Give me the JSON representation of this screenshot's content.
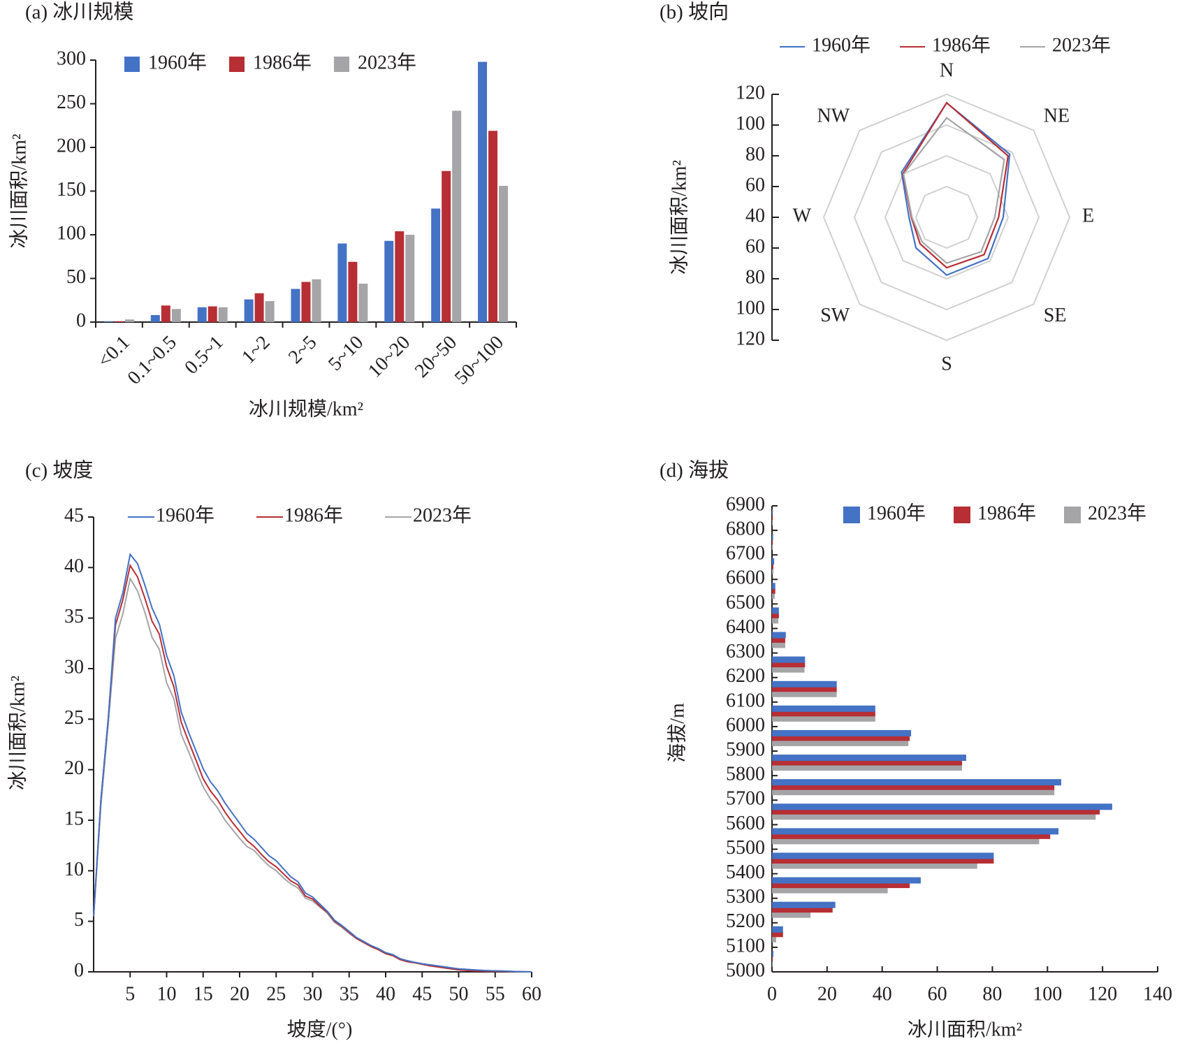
{
  "chart_data": [
    {
      "panel_title": "(a) 冰川规模",
      "type": "bar",
      "orientation": "vertical",
      "categories": [
        "<0.1",
        "0.1~0.5",
        "0.5~1",
        "1~2",
        "2~5",
        "5~10",
        "10~20",
        "20~50",
        "50~100"
      ],
      "series": [
        {
          "name": "1960年",
          "color": "#4472c4",
          "values": [
            1,
            8,
            17,
            26,
            38,
            90,
            93,
            130,
            298
          ]
        },
        {
          "name": "1986年",
          "color": "#b72e34",
          "values": [
            1,
            19,
            18,
            33,
            46,
            69,
            104,
            173,
            219
          ]
        },
        {
          "name": "2023年",
          "color": "#a5a5a8",
          "values": [
            3,
            15,
            17,
            24,
            49,
            44,
            100,
            242,
            156
          ]
        }
      ],
      "xlabel": "冰川规模/km²",
      "ylabel": "冰川面积/km²",
      "ylim": [
        0,
        300
      ],
      "yticks": [
        0,
        50,
        100,
        150,
        200,
        250,
        300
      ],
      "grid": false,
      "legend": "top"
    },
    {
      "panel_title": "(b) 坡向",
      "type": "radar",
      "categories": [
        "N",
        "NE",
        "E",
        "SE",
        "S",
        "SW",
        "W",
        "NW"
      ],
      "series": [
        {
          "name": "1960年",
          "color": "#4472c4",
          "values": [
            114.4,
            98,
            76.8,
            78,
            77.6,
            68.2,
            64.5,
            81.5
          ]
        },
        {
          "name": "1986年",
          "color": "#b72e34",
          "values": [
            114.5,
            96.5,
            73.8,
            74.4,
            72.8,
            64.4,
            63,
            80.2
          ]
        },
        {
          "name": "2023年",
          "color": "#a5a5a8",
          "values": [
            104.7,
            93,
            71.3,
            71.7,
            69.8,
            62.6,
            62.6,
            79.7
          ]
        }
      ],
      "ylabel": "冰川面积/km²",
      "range": [
        40,
        120
      ],
      "rings": [
        60,
        80,
        100,
        120
      ],
      "axis_tick_labels": [
        "120",
        "100",
        "80",
        "60",
        "40",
        "60",
        "80",
        "100",
        "120"
      ],
      "grid": true,
      "legend": "top"
    },
    {
      "panel_title": "(c) 坡度",
      "type": "line",
      "x": [
        0,
        1,
        2,
        3,
        4,
        5,
        6,
        7,
        8,
        9,
        10,
        11,
        12,
        13,
        14,
        15,
        16,
        17,
        18,
        19,
        20,
        21,
        22,
        23,
        24,
        25,
        26,
        27,
        28,
        29,
        30,
        31,
        32,
        33,
        34,
        35,
        36,
        37,
        38,
        39,
        40,
        41,
        42,
        43,
        44,
        45,
        46,
        47,
        48,
        49,
        50,
        51,
        52,
        53,
        54,
        55,
        56,
        57,
        58,
        59,
        60
      ],
      "series": [
        {
          "name": "1960年",
          "color": "#4472c4",
          "values": [
            5.5,
            17,
            25,
            35,
            37.5,
            41.3,
            40.4,
            38.3,
            36,
            34.4,
            31.3,
            29.3,
            25.7,
            23.7,
            21.9,
            20.1,
            18.8,
            17.9,
            16.7,
            15.7,
            14.7,
            13.7,
            13.1,
            12.3,
            11.5,
            11,
            10.2,
            9.4,
            8.9,
            7.8,
            7.4,
            6.7,
            6,
            5.1,
            4.6,
            4,
            3.4,
            3,
            2.6,
            2.3,
            1.9,
            1.7,
            1.3,
            1.1,
            0.95,
            0.8,
            0.7,
            0.6,
            0.5,
            0.4,
            0.3,
            0.25,
            0.2,
            0.15,
            0.12,
            0.1,
            0.08,
            0.05,
            0.03,
            0.01,
            0
          ]
        },
        {
          "name": "1986年",
          "color": "#b72e34",
          "values": [
            5.5,
            17,
            25,
            34.3,
            36.8,
            40.2,
            39.1,
            37,
            34.7,
            33.4,
            30.2,
            28.2,
            24.7,
            22.8,
            21,
            19.1,
            17.9,
            17,
            15.8,
            14.8,
            13.9,
            13,
            12.4,
            11.6,
            10.9,
            10.4,
            9.7,
            9,
            8.6,
            7.5,
            7.2,
            6.5,
            5.9,
            5,
            4.5,
            3.9,
            3.3,
            2.9,
            2.5,
            2.2,
            1.8,
            1.6,
            1.2,
            1,
            0.9,
            0.75,
            0.6,
            0.5,
            0.4,
            0.3,
            0.2,
            0.15,
            0.1,
            0.08,
            0.06,
            0.05,
            0.04,
            0.03,
            0.02,
            0.01,
            0
          ]
        },
        {
          "name": "2023年",
          "color": "#a5a5a8",
          "values": [
            5.5,
            16.5,
            24.5,
            33,
            35.4,
            38.9,
            37.7,
            35.6,
            33.1,
            31.9,
            28.6,
            27,
            23.5,
            21.8,
            20,
            18.3,
            17.1,
            16.2,
            15,
            14.1,
            13.2,
            12.4,
            12,
            11.2,
            10.5,
            10,
            9.3,
            8.7,
            8.3,
            7.3,
            7,
            6.4,
            5.8,
            4.9,
            4.4,
            3.8,
            3.3,
            2.9,
            2.5,
            2.2,
            1.8,
            1.6,
            1.2,
            1,
            0.9,
            0.75,
            0.65,
            0.55,
            0.45,
            0.35,
            0.3,
            0.25,
            0.2,
            0.15,
            0.12,
            0.1,
            0.08,
            0.05,
            0.03,
            0.01,
            0
          ]
        }
      ],
      "xlabel": "坡度/(°)",
      "ylabel": "冰川面积/km²",
      "xlim": [
        0,
        60
      ],
      "ylim": [
        0,
        45
      ],
      "xticks": [
        5,
        10,
        15,
        20,
        25,
        30,
        35,
        40,
        45,
        50,
        55,
        60
      ],
      "yticks": [
        0,
        5,
        10,
        15,
        20,
        25,
        30,
        35,
        40,
        45
      ],
      "grid": false,
      "legend": "top"
    },
    {
      "panel_title": "(d) 海拔",
      "type": "bar",
      "orientation": "horizontal",
      "categories": [
        "5000~5100",
        "5100~5200",
        "5200~5300",
        "5300~5400",
        "5400~5500",
        "5500~5600",
        "5600~5700",
        "5700~5800",
        "5800~5900",
        "5900~6000",
        "6000~6100",
        "6100~6200",
        "6200~6300",
        "6300~6400",
        "6400~6500",
        "6500~6600",
        "6600~6700",
        "6700~6800",
        "6800~6900"
      ],
      "series": [
        {
          "name": "1960年",
          "color": "#4472c4",
          "values": [
            0.5,
            4,
            23,
            54,
            80.5,
            104,
            123.5,
            105,
            70.5,
            50.5,
            37.5,
            23.5,
            12,
            5,
            2.5,
            1.2,
            0.8,
            0.4,
            0.3
          ]
        },
        {
          "name": "1986年",
          "color": "#b72e34",
          "values": [
            0.3,
            4,
            22,
            50,
            80.5,
            101,
            119,
            102.5,
            69,
            50,
            37.5,
            23.5,
            12,
            4.8,
            2.5,
            1.2,
            0.5,
            0.3,
            0.3
          ]
        },
        {
          "name": "2023年",
          "color": "#a5a5a8",
          "values": [
            0.2,
            1.5,
            14,
            42,
            74.5,
            97,
            117.5,
            102.5,
            69,
            49.5,
            37.5,
            23.5,
            11.8,
            4.8,
            2.3,
            1,
            0.5,
            0.3,
            0.2
          ]
        }
      ],
      "xlabel": "冰川面积/km²",
      "ylabel": "海拔/m",
      "xlim": [
        0,
        140
      ],
      "xticks": [
        0,
        20,
        40,
        60,
        80,
        100,
        120,
        140
      ],
      "yticks": [
        5000,
        5100,
        5200,
        5300,
        5400,
        5500,
        5600,
        5700,
        5800,
        5900,
        6000,
        6100,
        6200,
        6300,
        6400,
        6500,
        6600,
        6700,
        6800,
        6900
      ],
      "grid": false,
      "legend": "top"
    }
  ]
}
